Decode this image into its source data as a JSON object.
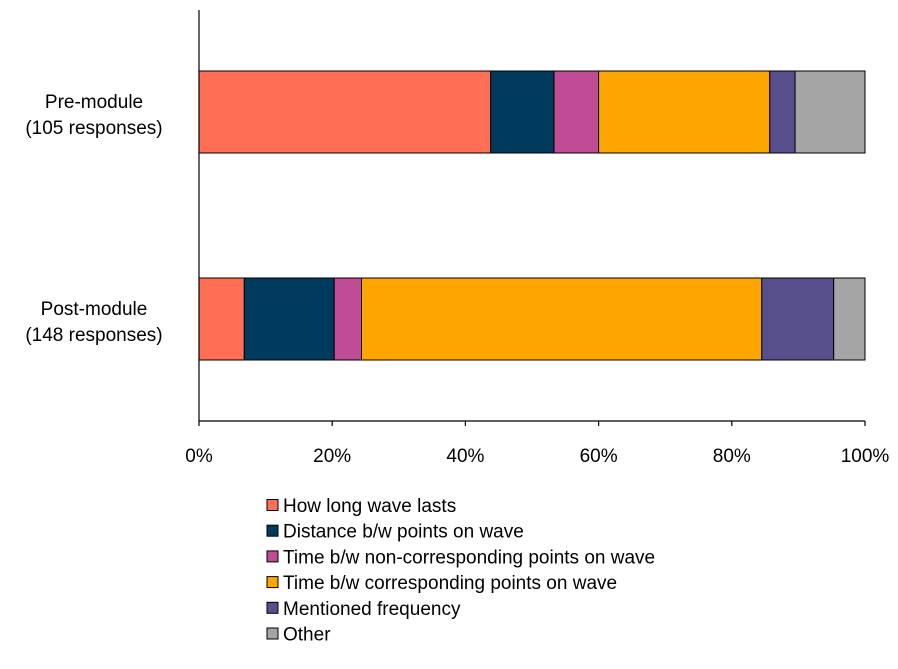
{
  "chart_data": {
    "type": "bar",
    "orientation": "horizontal",
    "stacked": true,
    "categories": [
      "Pre-module\n(105 responses)",
      "Post-module\n(148 responses)"
    ],
    "series": [
      {
        "name": "How long wave lasts",
        "values": [
          43.8,
          6.8
        ],
        "color": "#ff6e55"
      },
      {
        "name": "Distance b/w points on wave",
        "values": [
          9.5,
          13.5
        ],
        "color": "#003a5c"
      },
      {
        "name": "Time b/w non-corresponding points on wave",
        "values": [
          6.7,
          4.1
        ],
        "color": "#bf4c94"
      },
      {
        "name": "Time b/w corresponding points on wave",
        "values": [
          25.7,
          60.1
        ],
        "color": "#ffa500"
      },
      {
        "name": "Mentioned frequency",
        "values": [
          3.8,
          10.8
        ],
        "color": "#58508d"
      },
      {
        "name": "Other",
        "values": [
          10.5,
          4.7
        ],
        "color": "#a5a5a5"
      }
    ],
    "x_ticks": [
      "0%",
      "20%",
      "40%",
      "60%",
      "80%",
      "100%"
    ],
    "xlim": [
      0,
      100
    ],
    "title": "",
    "xlabel": "",
    "ylabel": "",
    "grid": false,
    "legend": "bottom"
  }
}
